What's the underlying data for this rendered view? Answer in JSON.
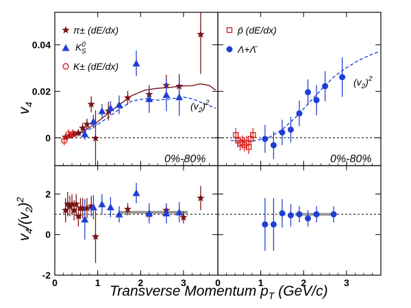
{
  "figure": {
    "xlabel_main": "Transverse Momentum p",
    "xlabel_sub": "T",
    "xlabel_unit": " (GeV/c)",
    "ylabel_top": "v",
    "ylabel_top_sub": "4",
    "ylabel_bottom": "v",
    "ylabel_bottom_sub1": "4",
    "ylabel_bottom_mid": "/(v",
    "ylabel_bottom_sub2": "2",
    "ylabel_bottom_end": ")",
    "ylabel_bottom_sup": "2"
  },
  "chart_data": [
    {
      "type": "scatter",
      "panel": "top-left",
      "xlim": [
        0,
        3.8
      ],
      "ylim": [
        -0.012,
        0.054
      ],
      "xticks": [
        0,
        1,
        2,
        3
      ],
      "yticks": [
        0,
        0.02,
        0.04
      ],
      "ytick_labels": [
        "0",
        "0.02",
        "0.04"
      ],
      "reference_line": 0,
      "annotation": "0%-80%",
      "curve_label_main": "(v",
      "curve_label_sub": "2",
      "curve_label_close": ")",
      "curve_label_sup": "2",
      "legend_position": "top-left",
      "colors": {
        "pion": "#7a1414",
        "kshort": "#1f3fd6",
        "kcharged": "#d62020",
        "curve_solid": "#7a1414",
        "curve_dashed": "#1f3fd6"
      },
      "series": [
        {
          "name": "π± (dE/dx)",
          "marker": "star",
          "points": [
            {
              "x": 0.25,
              "y": 0.0003,
              "e": 0.0012
            },
            {
              "x": 0.35,
              "y": 0.0009,
              "e": 0.0012
            },
            {
              "x": 0.45,
              "y": 0.0016,
              "e": 0.0013
            },
            {
              "x": 0.55,
              "y": 0.0021,
              "e": 0.0015
            },
            {
              "x": 0.65,
              "y": 0.0042,
              "e": 0.0022
            },
            {
              "x": 0.75,
              "y": 0.0058,
              "e": 0.0024
            },
            {
              "x": 0.85,
              "y": 0.0144,
              "e": 0.0035
            },
            {
              "x": 0.95,
              "y": -0.0002,
              "e": 0.012
            },
            {
              "x": 1.25,
              "y": 0.0115,
              "e": 0.004
            },
            {
              "x": 1.7,
              "y": 0.0172,
              "e": 0.003
            },
            {
              "x": 2.2,
              "y": 0.0187,
              "e": 0.0035
            },
            {
              "x": 2.6,
              "y": 0.0226,
              "e": 0.0045
            },
            {
              "x": 2.9,
              "y": 0.0222,
              "e": 0.0052
            },
            {
              "x": 3.4,
              "y": 0.0445,
              "e": 0.017
            }
          ]
        },
        {
          "name": "K0S",
          "marker": "triangle",
          "points": [
            {
              "x": 0.7,
              "y": 0.0016,
              "e": 0.0025
            },
            {
              "x": 0.9,
              "y": 0.007,
              "e": 0.003
            },
            {
              "x": 1.1,
              "y": 0.0115,
              "e": 0.003
            },
            {
              "x": 1.3,
              "y": 0.0128,
              "e": 0.003
            },
            {
              "x": 1.5,
              "y": 0.0142,
              "e": 0.004
            },
            {
              "x": 1.9,
              "y": 0.032,
              "e": 0.0055
            },
            {
              "x": 2.2,
              "y": 0.0167,
              "e": 0.006
            },
            {
              "x": 2.6,
              "y": 0.0185,
              "e": 0.007
            },
            {
              "x": 2.9,
              "y": 0.0175,
              "e": 0.008
            }
          ]
        },
        {
          "name": "K± (dE/dx)",
          "marker": "circle-open",
          "points": [
            {
              "x": 0.22,
              "y": -0.0012,
              "e": 0.002
            },
            {
              "x": 0.32,
              "y": 0.0015,
              "e": 0.002
            },
            {
              "x": 0.42,
              "y": 0.0016,
              "e": 0.002
            }
          ]
        }
      ],
      "curves": [
        {
          "name": "pion model (v2)^2",
          "style": "solid",
          "points": [
            [
              0.3,
              0.0005
            ],
            [
              0.6,
              0.0022
            ],
            [
              0.9,
              0.0055
            ],
            [
              1.2,
              0.0098
            ],
            [
              1.5,
              0.0142
            ],
            [
              1.8,
              0.0182
            ],
            [
              2.1,
              0.0205
            ],
            [
              2.4,
              0.0213
            ],
            [
              2.7,
              0.0217
            ],
            [
              3.0,
              0.0223
            ],
            [
              3.2,
              0.0224
            ],
            [
              3.4,
              0.0232
            ],
            [
              3.6,
              0.0225
            ],
            [
              3.75,
              0.0205
            ]
          ]
        },
        {
          "name": "kaon model (v2)^2",
          "style": "dashed",
          "points": [
            [
              0.3,
              0.0004
            ],
            [
              0.6,
              0.0018
            ],
            [
              0.9,
              0.0045
            ],
            [
              1.2,
              0.0082
            ],
            [
              1.5,
              0.0122
            ],
            [
              1.8,
              0.0158
            ],
            [
              2.1,
              0.0168
            ],
            [
              2.4,
              0.0162
            ],
            [
              2.7,
              0.0168
            ],
            [
              3.0,
              0.0175
            ],
            [
              3.2,
              0.0168
            ],
            [
              3.4,
              0.0153
            ],
            [
              3.6,
              0.0138
            ],
            [
              3.75,
              0.0127
            ]
          ]
        }
      ]
    },
    {
      "type": "scatter",
      "panel": "top-right",
      "xlim": [
        0,
        3.8
      ],
      "ylim": [
        -0.012,
        0.054
      ],
      "xticks": [
        0,
        1,
        2,
        3
      ],
      "yticks": [
        0,
        0.02,
        0.04
      ],
      "reference_line": 0,
      "annotation": "0%-80%",
      "curve_label_main": "(v",
      "curve_label_sub": "2",
      "curve_label_close": ")",
      "curve_label_sup": "2",
      "legend_position": "top-left",
      "colors": {
        "pbar": "#d62020",
        "lambda": "#1f3fd6",
        "curve_dashed": "#1f3fd6"
      },
      "series": [
        {
          "name": "p̄ (dE/dx)",
          "marker": "square-open",
          "points": [
            {
              "x": 0.42,
              "y": 0.0012,
              "e": 0.003
            },
            {
              "x": 0.47,
              "y": -0.0012,
              "e": 0.003
            },
            {
              "x": 0.52,
              "y": -0.0025,
              "e": 0.003
            },
            {
              "x": 0.57,
              "y": -0.002,
              "e": 0.003
            },
            {
              "x": 0.62,
              "y": -0.003,
              "e": 0.003
            },
            {
              "x": 0.67,
              "y": -0.0022,
              "e": 0.003
            },
            {
              "x": 0.72,
              "y": -0.004,
              "e": 0.003
            },
            {
              "x": 0.77,
              "y": -0.0005,
              "e": 0.003
            },
            {
              "x": 0.82,
              "y": 0.0012,
              "e": 0.003
            }
          ]
        },
        {
          "name": "Λ+Λ̄",
          "marker": "circle",
          "points": [
            {
              "x": 1.1,
              "y": -0.0005,
              "e": 0.006
            },
            {
              "x": 1.3,
              "y": -0.0032,
              "e": 0.006
            },
            {
              "x": 1.5,
              "y": 0.0023,
              "e": 0.0055
            },
            {
              "x": 1.7,
              "y": 0.0035,
              "e": 0.0055
            },
            {
              "x": 1.9,
              "y": 0.0105,
              "e": 0.0055
            },
            {
              "x": 2.1,
              "y": 0.0196,
              "e": 0.0055
            },
            {
              "x": 2.3,
              "y": 0.0162,
              "e": 0.0065
            },
            {
              "x": 2.5,
              "y": 0.0222,
              "e": 0.0065
            },
            {
              "x": 2.9,
              "y": 0.0261,
              "e": 0.0085
            }
          ]
        }
      ],
      "curves": [
        {
          "name": "(v2)^2",
          "style": "dashed",
          "points": [
            [
              0.3,
              -0.0012
            ],
            [
              0.6,
              -0.0015
            ],
            [
              0.9,
              -0.0012
            ],
            [
              1.2,
              0.0002
            ],
            [
              1.5,
              0.0035
            ],
            [
              1.8,
              0.0085
            ],
            [
              2.1,
              0.0145
            ],
            [
              2.4,
              0.0205
            ],
            [
              2.7,
              0.0262
            ],
            [
              3.0,
              0.0302
            ],
            [
              3.3,
              0.0335
            ],
            [
              3.6,
              0.036
            ],
            [
              3.75,
              0.037
            ]
          ]
        }
      ]
    },
    {
      "type": "scatter",
      "panel": "bottom-left",
      "xlim": [
        0,
        3.8
      ],
      "ylim": [
        -2,
        3.4
      ],
      "xticks": [
        0,
        1,
        2,
        3
      ],
      "xtick_labels": [
        "0",
        "1",
        "2",
        "3"
      ],
      "yticks": [
        -2,
        0,
        2
      ],
      "ytick_labels": [
        "-2",
        "0",
        "2"
      ],
      "reference_line": 1,
      "band": {
        "x": [
          1.5,
          3.1
        ],
        "y": 1.1
      },
      "series": [
        {
          "name": "π± (dE/dx)",
          "marker": "star",
          "points": [
            {
              "x": 0.25,
              "y": 1.2,
              "e": 0.6
            },
            {
              "x": 0.3,
              "y": 1.5,
              "e": 0.6
            },
            {
              "x": 0.35,
              "y": 1.4,
              "e": 0.5
            },
            {
              "x": 0.4,
              "y": 1.5,
              "e": 0.5
            },
            {
              "x": 0.45,
              "y": 1.2,
              "e": 0.5
            },
            {
              "x": 0.5,
              "y": 1.5,
              "e": 0.5
            },
            {
              "x": 0.55,
              "y": 0.9,
              "e": 0.5
            },
            {
              "x": 0.6,
              "y": 1.3,
              "e": 0.5
            },
            {
              "x": 0.65,
              "y": 1.3,
              "e": 0.5
            },
            {
              "x": 0.75,
              "y": 1.3,
              "e": 0.5
            },
            {
              "x": 0.85,
              "y": 1.4,
              "e": 0.5
            },
            {
              "x": 0.95,
              "y": -0.1,
              "e": 1.3
            },
            {
              "x": 1.7,
              "y": 1.25,
              "e": 0.3
            },
            {
              "x": 2.2,
              "y": 1.0,
              "e": 0.3
            },
            {
              "x": 2.6,
              "y": 1.2,
              "e": 0.3
            },
            {
              "x": 3.0,
              "y": 0.85,
              "e": 0.3
            },
            {
              "x": 3.4,
              "y": 1.8,
              "e": 0.6
            }
          ]
        },
        {
          "name": "K0S",
          "marker": "triangle",
          "points": [
            {
              "x": 0.7,
              "y": 0.75,
              "e": 1.0
            },
            {
              "x": 0.9,
              "y": 1.35,
              "e": 0.6
            },
            {
              "x": 1.1,
              "y": 1.5,
              "e": 0.5
            },
            {
              "x": 1.3,
              "y": 1.35,
              "e": 0.5
            },
            {
              "x": 1.5,
              "y": 1.0,
              "e": 0.4
            },
            {
              "x": 1.9,
              "y": 2.05,
              "e": 0.5
            },
            {
              "x": 2.2,
              "y": 1.05,
              "e": 0.5
            },
            {
              "x": 2.6,
              "y": 1.05,
              "e": 0.5
            },
            {
              "x": 2.9,
              "y": 1.1,
              "e": 0.5
            }
          ]
        }
      ]
    },
    {
      "type": "scatter",
      "panel": "bottom-right",
      "xlim": [
        0,
        3.8
      ],
      "ylim": [
        -2,
        3.4
      ],
      "xticks": [
        0,
        1,
        2,
        3
      ],
      "xtick_labels": [
        "0",
        "1",
        "2",
        "3"
      ],
      "yticks": [
        -2,
        0,
        2
      ],
      "reference_line": 1,
      "band": {
        "x": [
          1.8,
          2.75
        ],
        "y": 1.0
      },
      "series": [
        {
          "name": "Λ+Λ̄",
          "marker": "circle",
          "points": [
            {
              "x": 1.1,
              "y": 0.5,
              "e": 1.3
            },
            {
              "x": 1.3,
              "y": 0.5,
              "e": 1.3
            },
            {
              "x": 1.5,
              "y": 1.05,
              "e": 0.7
            },
            {
              "x": 1.7,
              "y": 0.95,
              "e": 0.55
            },
            {
              "x": 1.9,
              "y": 1.0,
              "e": 0.4
            },
            {
              "x": 2.1,
              "y": 0.8,
              "e": 0.4
            },
            {
              "x": 2.3,
              "y": 1.0,
              "e": 0.4
            },
            {
              "x": 2.7,
              "y": 1.0,
              "e": 0.4
            }
          ]
        }
      ]
    }
  ]
}
